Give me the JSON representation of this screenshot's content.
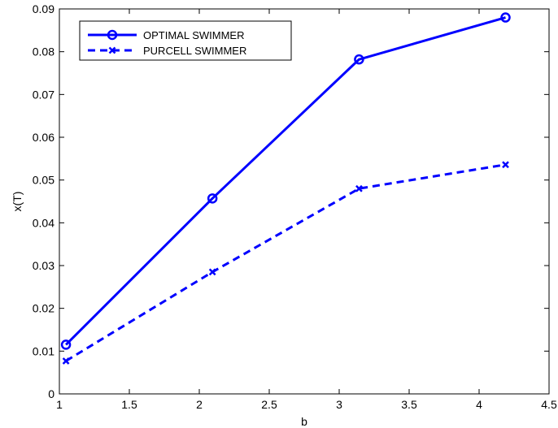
{
  "chart_data": {
    "type": "line",
    "title": "",
    "xlabel": "b",
    "ylabel": "x(T)",
    "xlim": [
      1,
      4.5
    ],
    "ylim": [
      0,
      0.09
    ],
    "xticks": [
      "1",
      "1.5",
      "2",
      "2.5",
      "3",
      "3.5",
      "4",
      "4.5"
    ],
    "yticks": [
      "0",
      "0.01",
      "0.02",
      "0.03",
      "0.04",
      "0.05",
      "0.06",
      "0.07",
      "0.08",
      "0.09"
    ],
    "grid": false,
    "legend_position": "top-left",
    "series": [
      {
        "name": "OPTIMAL SWIMMER",
        "x": [
          1.047,
          2.094,
          3.142,
          4.189
        ],
        "values": [
          0.0115,
          0.0457,
          0.0782,
          0.088
        ],
        "line_style": "solid",
        "marker": "circle",
        "color": "#0000ff"
      },
      {
        "name": "PURCELL SWIMMER",
        "x": [
          1.047,
          2.094,
          3.142,
          4.189
        ],
        "values": [
          0.0077,
          0.0285,
          0.048,
          0.0536
        ],
        "line_style": "dashed",
        "marker": "x",
        "color": "#0000ff"
      }
    ]
  }
}
